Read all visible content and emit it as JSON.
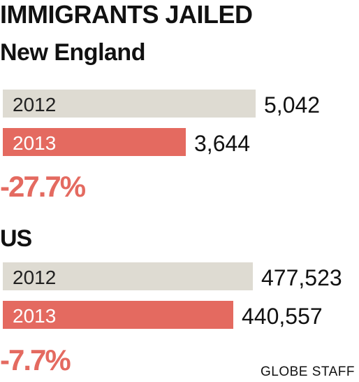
{
  "title": "IMMIGRANTS JAILED",
  "credit": "GLOBE STAFF",
  "colors": {
    "prior": "#dedbd2",
    "current": "#e46a60",
    "text": "#111111",
    "change": "#e46a60"
  },
  "chart_data": [
    {
      "type": "bar",
      "orientation": "horizontal",
      "title": "New England",
      "categories": [
        "2012",
        "2013"
      ],
      "values": [
        5042,
        3644
      ],
      "value_labels": [
        "5,042",
        "3,644"
      ],
      "change_label": "-27.7%"
    },
    {
      "type": "bar",
      "orientation": "horizontal",
      "title": "US",
      "categories": [
        "2012",
        "2013"
      ],
      "values": [
        477523,
        440557
      ],
      "value_labels": [
        "477,523",
        "440,557"
      ],
      "change_label": "-7.7%"
    }
  ]
}
